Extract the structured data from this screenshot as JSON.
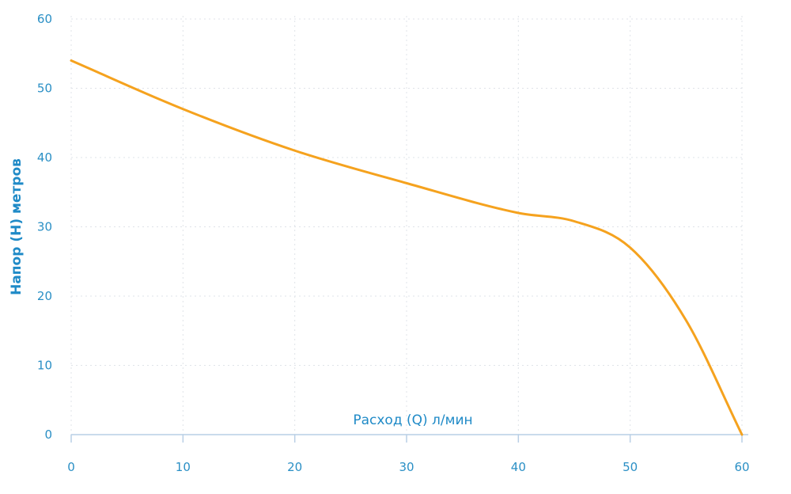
{
  "chart_data": {
    "type": "line",
    "title": "",
    "xlabel": "Расход (Q) л/мин",
    "ylabel": "Напор (H) метров",
    "xlim": [
      0,
      60
    ],
    "ylim": [
      0,
      60
    ],
    "x_ticks": [
      0,
      10,
      20,
      30,
      40,
      50,
      60
    ],
    "y_ticks": [
      0,
      10,
      20,
      30,
      40,
      50,
      60
    ],
    "grid": true,
    "legend": "none",
    "series": [
      {
        "x": [
          0,
          10,
          20,
          30,
          40,
          45,
          50,
          55,
          60
        ],
        "y": [
          54,
          47,
          41,
          36.3,
          32,
          30.8,
          27,
          16.5,
          0
        ]
      }
    ],
    "colors": {
      "line": "#f5a21e",
      "axis_title": "#1f8ac7",
      "tick_label": "#2a8fc5",
      "grid": "#dfe3e8",
      "axis": "#b9cfe6"
    }
  }
}
